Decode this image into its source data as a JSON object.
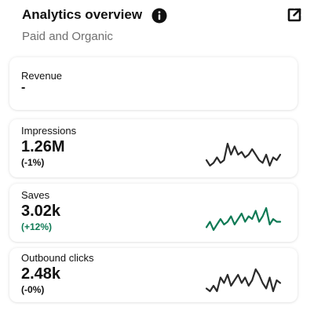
{
  "header": {
    "title": "Analytics overview",
    "subtitle": "Paid and Organic",
    "info_icon": "info-icon",
    "external_icon": "open-external-icon"
  },
  "colors": {
    "neutral_line": "#2b2b2b",
    "positive_line": "#0f7a55",
    "positive_text": "#0f7a55"
  },
  "cards": [
    {
      "label": "Revenue",
      "value": "-"
    },
    {
      "label": "Impressions",
      "value": "1.26M",
      "change": "(-1%)",
      "trend": [
        4,
        2,
        3,
        5,
        3,
        4,
        10,
        6,
        9,
        6,
        7,
        5,
        6,
        8,
        6,
        4,
        3,
        6,
        2,
        5,
        4,
        6
      ]
    },
    {
      "label": "Saves",
      "value": "3.02k",
      "change": "(+12%)",
      "trend": [
        3,
        5,
        2,
        4,
        6,
        4,
        5,
        7,
        4,
        6,
        8,
        5,
        7,
        6,
        9,
        5,
        7,
        10,
        4,
        6,
        5,
        5
      ]
    },
    {
      "label": "Outbound clicks",
      "value": "2.48k",
      "change": "(-0%)",
      "trend": [
        3,
        2,
        4,
        2,
        7,
        5,
        8,
        4,
        6,
        8,
        5,
        7,
        4,
        6,
        10,
        8,
        5,
        3,
        7,
        2,
        6,
        5
      ]
    }
  ]
}
